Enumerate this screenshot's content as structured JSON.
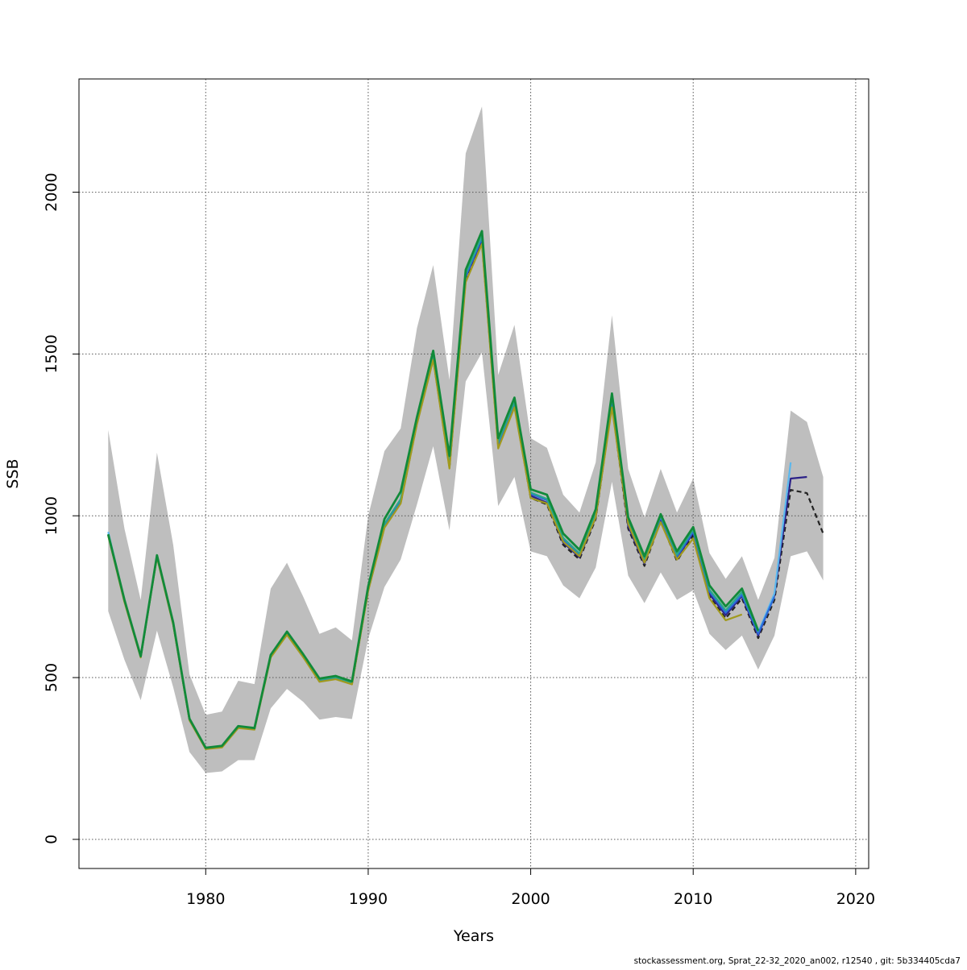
{
  "chart_data": {
    "type": "line",
    "xlabel": "Years",
    "ylabel": "SSB",
    "xlim": [
      1972.2,
      2020.8
    ],
    "ylim": [
      -90,
      2350
    ],
    "x_ticks": [
      1980,
      1990,
      2000,
      2010,
      2020
    ],
    "y_ticks": [
      0,
      500,
      1000,
      1500,
      2000
    ],
    "x_tick_labels": [
      "1980",
      "1990",
      "2000",
      "2010",
      "2020"
    ],
    "y_tick_labels": [
      "0",
      "500",
      "1000",
      "1500",
      "2000"
    ],
    "grid": true,
    "legend": "none",
    "footnote": "stockassessment.org, Sprat_22-32_2020_an002, r12540 , git: 5b334405cda7",
    "colors": {
      "band": "#bebebe",
      "grid": "#555555",
      "dashed_line": "#222222",
      "terminal_2017": "#2c2288",
      "terminal_2016": "#5bb8ee",
      "terminal_2015": "#2a6ad8",
      "terminal_2014": "#2aa88a",
      "terminal_2013": "#a19a1e",
      "final": "#118a3a"
    },
    "band": {
      "x": [
        1974,
        1975,
        1976,
        1977,
        1978,
        1979,
        1980,
        1981,
        1982,
        1983,
        1984,
        1985,
        1986,
        1987,
        1988,
        1989,
        1990,
        1991,
        1992,
        1993,
        1994,
        1995,
        1996,
        1997,
        1998,
        1999,
        2000,
        2001,
        2002,
        2003,
        2004,
        2005,
        2006,
        2007,
        2008,
        2009,
        2010,
        2011,
        2012,
        2013,
        2014,
        2015,
        2016,
        2017,
        2018
      ],
      "lower": [
        705,
        555,
        430,
        645,
        470,
        270,
        205,
        210,
        245,
        245,
        405,
        465,
        425,
        370,
        378,
        372,
        620,
        780,
        865,
        1035,
        1215,
        955,
        1415,
        1505,
        1030,
        1120,
        890,
        875,
        785,
        745,
        840,
        1105,
        815,
        730,
        825,
        740,
        770,
        635,
        585,
        630,
        525,
        630,
        875,
        890,
        800
      ],
      "upper": [
        1265,
        960,
        740,
        1195,
        910,
        510,
        385,
        395,
        490,
        480,
        775,
        855,
        750,
        635,
        655,
        615,
        1000,
        1200,
        1270,
        1580,
        1775,
        1420,
        2120,
        2265,
        1435,
        1590,
        1240,
        1210,
        1065,
        1010,
        1165,
        1620,
        1145,
        995,
        1145,
        1010,
        1115,
        885,
        805,
        875,
        740,
        870,
        1325,
        1290,
        1120
      ]
    },
    "series": [
      {
        "x": [
          1974,
          1975,
          1976,
          1977,
          1978,
          1979,
          1980,
          1981,
          1982,
          1983,
          1984,
          1985,
          1986,
          1987,
          1988,
          1989,
          1990,
          1991,
          1992,
          1993,
          1994,
          1995,
          1996,
          1997,
          1998,
          1999,
          2000,
          2001,
          2002,
          2003,
          2004,
          2005,
          2006,
          2007,
          2008,
          2009,
          2010,
          2011,
          2012,
          2013,
          2014,
          2015,
          2016,
          2017,
          2018
        ],
        "y": [
          940,
          735,
          565,
          875,
          665,
          370,
          280,
          285,
          345,
          340,
          565,
          635,
          565,
          488,
          497,
          480,
          770,
          965,
          1040,
          1285,
          1485,
          1150,
          1730,
          1845,
          1215,
          1340,
          1055,
          1035,
          910,
          865,
          990,
          1345,
          960,
          845,
          985,
          860,
          940,
          750,
          683,
          745,
          622,
          740,
          1080,
          1070,
          945
        ],
        "style": "dashed-black"
      },
      {
        "x": [
          1974,
          1975,
          1976,
          1977,
          1978,
          1979,
          1980,
          1981,
          1982,
          1983,
          1984,
          1985,
          1986,
          1987,
          1988,
          1989,
          1990,
          1991,
          1992,
          1993,
          1994,
          1995,
          1996,
          1997,
          1998,
          1999,
          2000,
          2001,
          2002,
          2003,
          2004,
          2005,
          2006,
          2007,
          2008,
          2009,
          2010,
          2011,
          2012,
          2013,
          2014,
          2015,
          2016,
          2017
        ],
        "y": [
          942,
          737,
          564,
          876,
          667,
          371,
          281,
          287,
          347,
          342,
          566,
          637,
          567,
          490,
          499,
          482,
          773,
          968,
          1043,
          1290,
          1490,
          1152,
          1738,
          1853,
          1218,
          1345,
          1062,
          1040,
          917,
          872,
          995,
          1352,
          968,
          852,
          992,
          868,
          948,
          758,
          693,
          752,
          630,
          755,
          1115,
          1120
        ],
        "style": "terminal_2017"
      },
      {
        "x": [
          1974,
          1975,
          1976,
          1977,
          1978,
          1979,
          1980,
          1981,
          1982,
          1983,
          1984,
          1985,
          1986,
          1987,
          1988,
          1989,
          1990,
          1991,
          1992,
          1993,
          1994,
          1995,
          1996,
          1997,
          1998,
          1999,
          2000,
          2001,
          2002,
          2003,
          2004,
          2005,
          2006,
          2007,
          2008,
          2009,
          2010,
          2011,
          2012,
          2013,
          2014,
          2015,
          2016
        ],
        "y": [
          950,
          738,
          563,
          877,
          668,
          372,
          282,
          288,
          348,
          343,
          567,
          638,
          568,
          492,
          500,
          484,
          775,
          973,
          1050,
          1295,
          1495,
          1160,
          1745,
          1860,
          1225,
          1350,
          1070,
          1050,
          930,
          880,
          1005,
          1360,
          980,
          862,
          998,
          878,
          955,
          770,
          705,
          760,
          640,
          760,
          1165
        ],
        "style": "terminal_2016"
      },
      {
        "x": [
          1974,
          1975,
          1976,
          1977,
          1978,
          1979,
          1980,
          1981,
          1982,
          1983,
          1984,
          1985,
          1986,
          1987,
          1988,
          1989,
          1990,
          1991,
          1992,
          1993,
          1994,
          1995,
          1996,
          1997,
          1998,
          1999,
          2000,
          2001,
          2002,
          2003,
          2004,
          2005,
          2006,
          2007,
          2008,
          2009,
          2010,
          2011,
          2012,
          2013,
          2014,
          2015
        ],
        "y": [
          941,
          736,
          564,
          875,
          666,
          371,
          281,
          286,
          346,
          341,
          566,
          636,
          566,
          491,
          499,
          483,
          774,
          970,
          1047,
          1292,
          1492,
          1155,
          1740,
          1858,
          1222,
          1348,
          1068,
          1048,
          926,
          878,
          1000,
          1362,
          975,
          860,
          996,
          874,
          951,
          766,
          700,
          756,
          635,
          750
        ],
        "style": "terminal_2015"
      },
      {
        "x": [
          1974,
          1975,
          1976,
          1977,
          1978,
          1979,
          1980,
          1981,
          1982,
          1983,
          1984,
          1985,
          1986,
          1987,
          1988,
          1989,
          1990,
          1991,
          1992,
          1993,
          1994,
          1995,
          1996,
          1997,
          1998,
          1999,
          2000,
          2001,
          2002,
          2003,
          2004,
          2005,
          2006,
          2007,
          2008,
          2009,
          2010,
          2011,
          2012,
          2013,
          2014
        ],
        "y": [
          942,
          738,
          565,
          876,
          667,
          372,
          282,
          287,
          348,
          342,
          567,
          638,
          568,
          493,
          501,
          484,
          776,
          975,
          1052,
          1298,
          1500,
          1162,
          1748,
          1865,
          1228,
          1352,
          1072,
          1052,
          932,
          884,
          1008,
          1368,
          982,
          865,
          1000,
          880,
          958,
          772,
          708,
          765,
          642
        ],
        "style": "terminal_2014"
      },
      {
        "x": [
          1974,
          1975,
          1976,
          1977,
          1978,
          1979,
          1980,
          1981,
          1982,
          1983,
          1984,
          1985,
          1986,
          1987,
          1988,
          1989,
          1990,
          1991,
          1992,
          1993,
          1994,
          1995,
          1996,
          1997,
          1998,
          1999,
          2000,
          2001,
          2002,
          2003,
          2004,
          2005,
          2006,
          2007,
          2008,
          2009,
          2010,
          2011,
          2012,
          2013
        ],
        "y": [
          938,
          733,
          562,
          872,
          663,
          368,
          279,
          284,
          344,
          339,
          562,
          632,
          563,
          487,
          495,
          479,
          768,
          963,
          1038,
          1283,
          1482,
          1146,
          1722,
          1840,
          1208,
          1335,
          1055,
          1038,
          920,
          875,
          995,
          1335,
          975,
          855,
          980,
          865,
          930,
          745,
          677,
          695
        ],
        "style": "terminal_2013"
      },
      {
        "x": [
          1974,
          1975,
          1976,
          1977,
          1978,
          1979,
          1980,
          1981,
          1982,
          1983,
          1984,
          1985,
          1986,
          1987,
          1988,
          1989,
          1990,
          1991,
          1992,
          1993,
          1994,
          1995,
          1996,
          1997,
          1998,
          1999,
          2000,
          2001,
          2002,
          2003,
          2004,
          2005,
          2006,
          2007,
          2008,
          2009,
          2010,
          2011,
          2012,
          2013,
          2014
        ],
        "y": [
          943,
          740,
          566,
          878,
          670,
          373,
          283,
          289,
          350,
          344,
          570,
          642,
          572,
          497,
          505,
          488,
          782,
          990,
          1075,
          1305,
          1510,
          1185,
          1760,
          1880,
          1240,
          1365,
          1082,
          1065,
          945,
          895,
          1020,
          1378,
          995,
          875,
          1005,
          890,
          965,
          785,
          720,
          775,
          645
        ],
        "style": "final"
      }
    ]
  }
}
